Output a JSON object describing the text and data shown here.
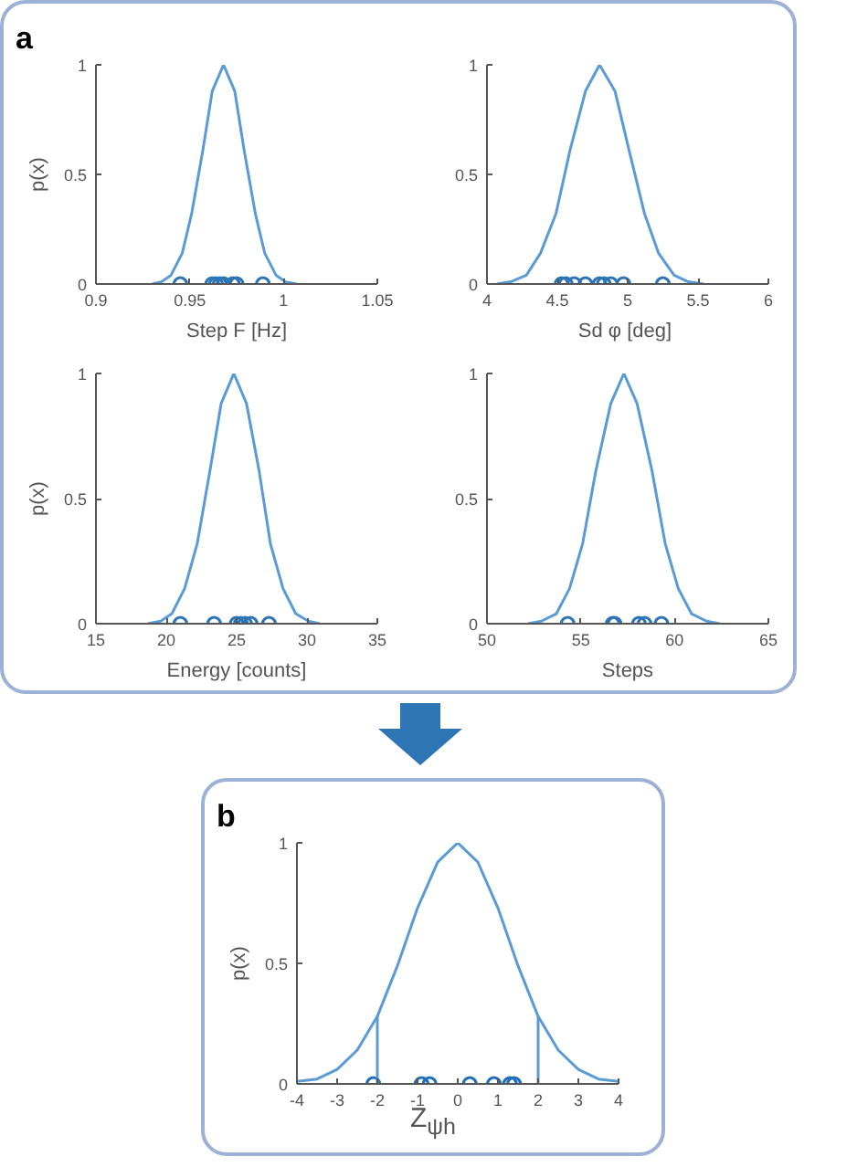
{
  "chart_data": [
    {
      "type": "line",
      "annotations": [
        "a"
      ],
      "xlabel": "Step F [Hz]",
      "ylabel": "p(x)",
      "xlim": [
        0.9,
        1.05
      ],
      "xticks": [
        0.9,
        0.95,
        1,
        1.05
      ],
      "ylim": [
        0,
        1
      ],
      "yticks": [
        0,
        0.5,
        1
      ],
      "series": [
        {
          "color": "#5b9bd5",
          "x": [
            0.93,
            0.935,
            0.94,
            0.946,
            0.951,
            0.957,
            0.962,
            0.968,
            0.974,
            0.979,
            0.985,
            0.99,
            0.996,
            1.001,
            1.007
          ],
          "values": [
            0,
            0.01,
            0.04,
            0.14,
            0.32,
            0.61,
            0.88,
            1,
            0.88,
            0.61,
            0.32,
            0.14,
            0.04,
            0.01,
            0
          ]
        },
        {
          "type": "scatter",
          "marker": "circle",
          "color": "#2e75b6",
          "x": [
            0.945,
            0.962,
            0.964,
            0.966,
            0.968,
            0.973,
            0.975,
            0.989
          ],
          "values": [
            0,
            0,
            0,
            0,
            0,
            0,
            0,
            0
          ]
        }
      ]
    },
    {
      "type": "line",
      "xlabel": "Sd  φ [deg]",
      "xlim": [
        4,
        6
      ],
      "xticks": [
        4,
        4.5,
        5,
        5.5,
        6
      ],
      "ylim": [
        0,
        1
      ],
      "yticks": [
        0,
        0.5,
        1
      ],
      "series": [
        {
          "color": "#5b9bd5",
          "x": [
            4.07,
            4.17,
            4.28,
            4.38,
            4.49,
            4.59,
            4.7,
            4.8,
            4.91,
            5.01,
            5.12,
            5.22,
            5.33,
            5.43,
            5.54
          ],
          "values": [
            0,
            0.01,
            0.04,
            0.14,
            0.32,
            0.61,
            0.88,
            1,
            0.88,
            0.61,
            0.32,
            0.14,
            0.04,
            0.01,
            0
          ]
        },
        {
          "type": "scatter",
          "marker": "circle",
          "color": "#2e75b6",
          "x": [
            4.53,
            4.56,
            4.62,
            4.7,
            4.8,
            4.83,
            4.88,
            4.97,
            5.25
          ],
          "values": [
            0,
            0,
            0,
            0,
            0,
            0,
            0,
            0,
            0
          ]
        }
      ]
    },
    {
      "type": "line",
      "xlabel": "Energy [counts]",
      "ylabel": "p(x)",
      "xlim": [
        15,
        35
      ],
      "xticks": [
        15,
        20,
        25,
        30,
        35
      ],
      "ylim": [
        0,
        1
      ],
      "yticks": [
        0,
        0.5,
        1
      ],
      "series": [
        {
          "color": "#5b9bd5",
          "x": [
            18.7,
            19.6,
            20.4,
            21.3,
            22.2,
            23.1,
            23.9,
            24.8,
            25.7,
            26.6,
            27.4,
            28.3,
            29.2,
            30.1,
            30.9
          ],
          "values": [
            0,
            0.01,
            0.04,
            0.14,
            0.32,
            0.61,
            0.88,
            1,
            0.88,
            0.61,
            0.32,
            0.14,
            0.04,
            0.01,
            0
          ]
        },
        {
          "type": "scatter",
          "marker": "circle",
          "color": "#2e75b6",
          "x": [
            21,
            23.4,
            25,
            25.3,
            25.6,
            26,
            27.3
          ],
          "values": [
            0,
            0,
            0,
            0,
            0,
            0,
            0
          ]
        }
      ]
    },
    {
      "type": "line",
      "xlabel": "Steps",
      "xlim": [
        50,
        65
      ],
      "xticks": [
        50,
        55,
        60,
        65
      ],
      "ylim": [
        0,
        1
      ],
      "yticks": [
        0,
        0.5,
        1
      ],
      "series": [
        {
          "color": "#5b9bd5",
          "x": [
            52.2,
            52.9,
            53.7,
            54.4,
            55.1,
            55.8,
            56.6,
            57.3,
            58.0,
            58.8,
            59.5,
            60.2,
            60.9,
            61.7,
            62.4
          ],
          "values": [
            0,
            0.01,
            0.04,
            0.14,
            0.32,
            0.61,
            0.88,
            1,
            0.88,
            0.61,
            0.32,
            0.14,
            0.04,
            0.01,
            0
          ]
        },
        {
          "type": "scatter",
          "marker": "circle",
          "color": "#2e75b6",
          "x": [
            54.3,
            56.7,
            56.8,
            58.1,
            58.4,
            59.3
          ],
          "values": [
            0,
            0,
            0,
            0,
            0,
            0
          ]
        }
      ]
    },
    {
      "type": "line",
      "annotations": [
        "b"
      ],
      "xlabel": "Z$_{ψh}$",
      "ylabel": "p(x)",
      "xlim": [
        -4,
        4
      ],
      "xticks": [
        -4,
        -3,
        -2,
        -1,
        0,
        1,
        2,
        3,
        4
      ],
      "ylim": [
        0,
        1
      ],
      "yticks": [
        0,
        0.5,
        1
      ],
      "ref_lines": [
        {
          "axis": "x",
          "value": -2,
          "color": "#5b9bd5"
        },
        {
          "axis": "x",
          "value": 2,
          "color": "#5b9bd5"
        }
      ],
      "series": [
        {
          "color": "#5b9bd5",
          "x": [
            -4,
            -3.5,
            -3,
            -2.5,
            -2,
            -1.5,
            -1,
            -0.5,
            0,
            0.5,
            1,
            1.5,
            2,
            2.5,
            3,
            3.5,
            4
          ],
          "values": [
            0.01,
            0.02,
            0.06,
            0.14,
            0.28,
            0.49,
            0.73,
            0.92,
            1,
            0.92,
            0.73,
            0.49,
            0.28,
            0.14,
            0.06,
            0.02,
            0.01
          ]
        },
        {
          "type": "scatter",
          "marker": "circle",
          "color": "#1f6fb8",
          "x": [
            -2.1,
            -0.9,
            -0.7,
            0.3,
            0.9,
            1.3,
            1.4
          ],
          "values": [
            0,
            0,
            0,
            0,
            0,
            0,
            0
          ]
        }
      ]
    }
  ]
}
